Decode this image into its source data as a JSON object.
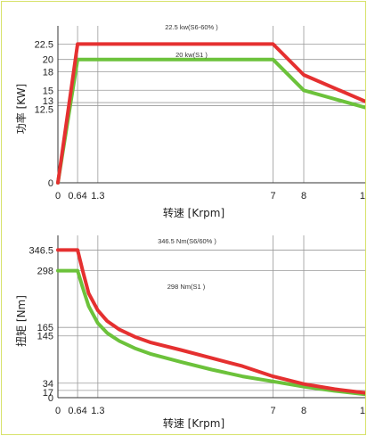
{
  "colors": {
    "red_series": "#e53030",
    "green_series": "#6cc23b",
    "grid": "#9a9a9a",
    "frame": "#d7e26a"
  },
  "chart_data": [
    {
      "type": "line",
      "xlabel": "转速 [Krpm]",
      "ylabel": "功率 [KW]",
      "x_ticks": [
        "0",
        "0.64",
        "1.3",
        "7",
        "8",
        "1"
      ],
      "y_ticks": [
        "0",
        "12.5",
        "13",
        "15",
        "18",
        "20",
        "22.5"
      ],
      "xlim": [
        0,
        10
      ],
      "ylim": [
        0,
        24
      ],
      "x_grid": [
        0.64,
        1.3,
        7,
        8
      ],
      "y_grid": [
        12.5,
        13,
        15,
        18,
        20,
        22.5
      ],
      "series": [
        {
          "color": "#e53030",
          "annotation": "22.5 kw(S6-60% )",
          "x": [
            0,
            0.64,
            7,
            8,
            10
          ],
          "y": [
            0,
            22.5,
            22.5,
            17.5,
            13.2
          ]
        },
        {
          "color": "#6cc23b",
          "annotation": "20 kw(S1 )",
          "x": [
            0,
            0.64,
            7,
            8,
            10
          ],
          "y": [
            0,
            20,
            20,
            15,
            12.2
          ]
        }
      ]
    },
    {
      "type": "line",
      "xlabel": "转速 [Krpm]",
      "ylabel": "扭矩 [Nm]",
      "x_ticks": [
        "0",
        "0.64",
        "1.3",
        "7",
        "8",
        "1"
      ],
      "y_ticks": [
        "0",
        "17",
        "34",
        "145",
        "165",
        "298",
        "346.5"
      ],
      "xlim": [
        0,
        10
      ],
      "ylim": [
        0,
        360
      ],
      "x_grid": [
        0.64,
        1.3,
        7,
        8
      ],
      "y_grid": [
        17,
        34,
        145,
        165,
        298,
        346.5
      ],
      "series": [
        {
          "color": "#e53030",
          "annotation": "346.5 Nm(S6/60% )",
          "x": [
            0,
            0.64,
            0.8,
            1.0,
            1.3,
            1.6,
            2,
            2.5,
            3,
            4,
            5,
            6,
            7,
            8,
            9,
            10
          ],
          "y": [
            346.5,
            346.5,
            300,
            245,
            205,
            180,
            160,
            143,
            130,
            112,
            93,
            74,
            50,
            32,
            20,
            11
          ]
        },
        {
          "color": "#6cc23b",
          "annotation": "298 Nm(S1 )",
          "x": [
            0,
            0.64,
            0.8,
            1.0,
            1.3,
            1.6,
            2,
            2.5,
            3,
            4,
            5,
            6,
            7,
            8,
            9,
            10
          ],
          "y": [
            298,
            298,
            260,
            215,
            175,
            152,
            133,
            116,
            103,
            84,
            66,
            50,
            38,
            26,
            16,
            8
          ]
        }
      ]
    }
  ]
}
